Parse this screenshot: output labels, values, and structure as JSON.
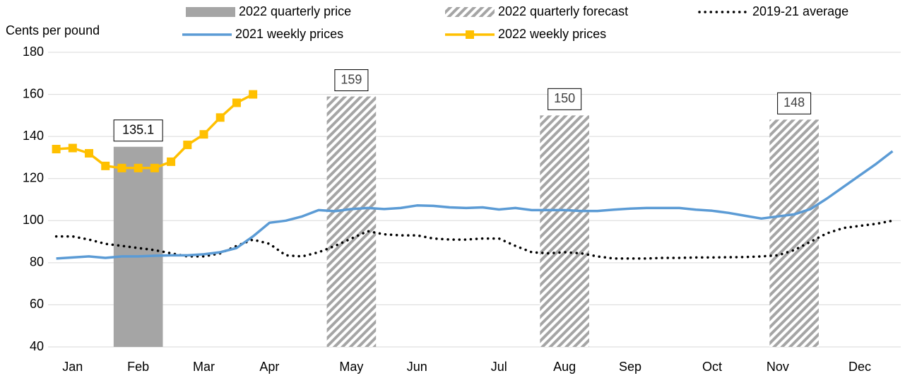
{
  "chart_data": {
    "type": "line",
    "ylabel": "Cents per pound",
    "xlim": [
      0.5,
      52.5
    ],
    "xticks": [
      {
        "value": 2,
        "label": "Jan"
      },
      {
        "value": 6,
        "label": "Feb"
      },
      {
        "value": 10,
        "label": "Mar"
      },
      {
        "value": 14,
        "label": "Apr"
      },
      {
        "value": 19,
        "label": "May"
      },
      {
        "value": 23,
        "label": "Jun"
      },
      {
        "value": 28,
        "label": "Jul"
      },
      {
        "value": 32,
        "label": "Aug"
      },
      {
        "value": 36,
        "label": "Sep"
      },
      {
        "value": 41,
        "label": "Oct"
      },
      {
        "value": 45,
        "label": "Nov"
      },
      {
        "value": 50,
        "label": "Dec"
      }
    ],
    "ylim": [
      40,
      180
    ],
    "yticks": [
      40,
      60,
      80,
      100,
      120,
      140,
      160,
      180
    ],
    "grid": true,
    "legend": "top",
    "series": [
      {
        "name": "2022 quarterly price",
        "type": "bar",
        "color": "#a5a5a5",
        "x": [
          6
        ],
        "values": [
          135.1
        ]
      },
      {
        "name": "2022 quarterly forecast",
        "type": "bar",
        "pattern": "hatch",
        "color": "#a5a5a5",
        "x": [
          19,
          32,
          46
        ],
        "values": [
          159,
          150,
          148
        ]
      },
      {
        "name": "2019-21 average",
        "type": "line",
        "style": "dotted",
        "color": "#000000",
        "x": [
          1,
          2,
          3,
          4,
          5,
          6,
          7,
          8,
          9,
          10,
          11,
          12,
          13,
          14,
          15,
          16,
          17,
          18,
          19,
          20,
          21,
          22,
          23,
          24,
          25,
          26,
          27,
          28,
          29,
          30,
          31,
          32,
          33,
          34,
          35,
          36,
          37,
          38,
          39,
          40,
          41,
          42,
          43,
          44,
          45,
          46,
          47,
          48,
          49,
          50,
          51,
          52
        ],
        "values": [
          92.5,
          92.5,
          91,
          89,
          88,
          87,
          86,
          84.5,
          83,
          83,
          84.5,
          88,
          91,
          89,
          83.5,
          83,
          85,
          88,
          91.5,
          95,
          93.5,
          93,
          93,
          91.5,
          91,
          91,
          91.5,
          91.5,
          88,
          85,
          84.5,
          85,
          84.5,
          83,
          82,
          82,
          82,
          82.3,
          82.3,
          82.5,
          82.5,
          82.6,
          82.7,
          83,
          83.5,
          86,
          90,
          94,
          96.5,
          97.5,
          98.5,
          100
        ]
      },
      {
        "name": "2021 weekly prices",
        "type": "line",
        "style": "solid",
        "color": "#5b9bd5",
        "x": [
          1,
          2,
          3,
          4,
          5,
          6,
          7,
          8,
          9,
          10,
          11,
          12,
          13,
          14,
          15,
          16,
          17,
          18,
          19,
          20,
          21,
          22,
          23,
          24,
          25,
          26,
          27,
          28,
          29,
          30,
          31,
          32,
          33,
          34,
          35,
          36,
          37,
          38,
          39,
          40,
          41,
          42,
          43,
          44,
          45,
          46,
          47,
          48,
          49,
          50,
          51,
          52
        ],
        "values": [
          82,
          82.5,
          83,
          82.3,
          83,
          83,
          83.3,
          83.5,
          83.5,
          84,
          85,
          87,
          92.5,
          99,
          100,
          102,
          105,
          104.5,
          105.5,
          106,
          105.5,
          106,
          107.2,
          107,
          106.3,
          106,
          106.3,
          105.3,
          106,
          105,
          105,
          105,
          104.6,
          104.6,
          105.2,
          105.7,
          106,
          106,
          106,
          105.2,
          104.7,
          103.7,
          102.3,
          101,
          102,
          103,
          105.5,
          110.5,
          116,
          121.5,
          127,
          133
        ]
      },
      {
        "name": "2022 weekly prices",
        "type": "line",
        "style": "solid",
        "marker": "square",
        "color": "#ffc000",
        "x": [
          1,
          2,
          3,
          4,
          5,
          6,
          7,
          8,
          9,
          10,
          11,
          12,
          13
        ],
        "values": [
          134,
          134.5,
          132,
          126,
          125,
          125,
          125,
          128,
          136,
          141,
          149,
          156,
          160
        ]
      }
    ]
  }
}
